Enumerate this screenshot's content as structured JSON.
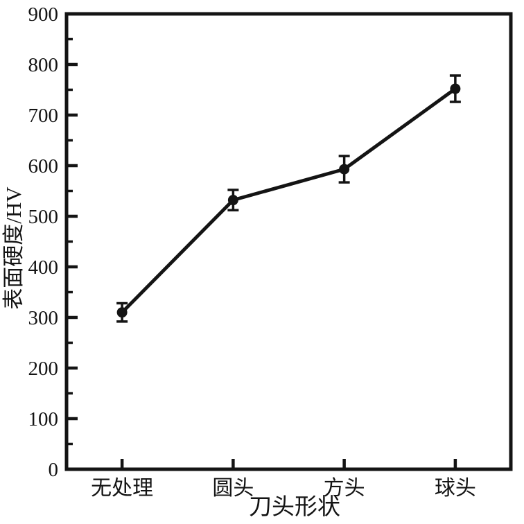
{
  "figure": {
    "background_color": "#ffffff",
    "ink_color": "#141414"
  },
  "chart_data": {
    "type": "line",
    "title": "",
    "xlabel": "刀头形状",
    "ylabel": "表面硬度/HV",
    "categories": [
      "无处理",
      "圆头",
      "方头",
      "球头"
    ],
    "values": [
      310,
      532,
      593,
      752
    ],
    "error_bars": [
      18,
      20,
      26,
      26
    ],
    "ylim": [
      0,
      900
    ],
    "yticks": [
      0,
      100,
      200,
      300,
      400,
      500,
      600,
      700,
      800,
      900
    ],
    "y_minor_tick_step": 50,
    "grid": "off",
    "legend_position": "none",
    "marker_style": "filled-circle",
    "line_style": "solid"
  }
}
